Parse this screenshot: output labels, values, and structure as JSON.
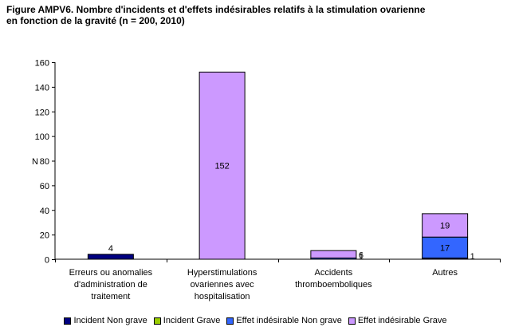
{
  "chart_data": {
    "type": "bar",
    "stacked": true,
    "title": "Figure AMPV6. Nombre d'incidents et d'effets indésirables relatifs à la stimulation ovarienne\nen fonction de la gravité (n = 200, 2010)",
    "xlabel": "",
    "ylabel": "N",
    "ylim": [
      0,
      160
    ],
    "yticks": [
      0,
      20,
      40,
      60,
      80,
      100,
      120,
      140,
      160
    ],
    "grid": false,
    "legend_position": "bottom",
    "categories": [
      [
        "Erreurs ou anomalies",
        "d'administration de",
        "traitement"
      ],
      [
        "Hyperstimulations",
        "ovariennes avec",
        "hospitalisation"
      ],
      [
        "Accidents",
        "thromboemboliques"
      ],
      [
        "Autres"
      ]
    ],
    "series": [
      {
        "name": "Incident Non grave",
        "color": "#000080",
        "values": [
          4,
          0,
          0,
          1
        ],
        "labels": [
          "4",
          "",
          "",
          "1"
        ]
      },
      {
        "name": "Incident Grave",
        "color": "#99CC00",
        "values": [
          0,
          0,
          0,
          0
        ],
        "labels": [
          "",
          "",
          "",
          ""
        ]
      },
      {
        "name": "Effet indésirable Non grave",
        "color": "#3366FF",
        "values": [
          0,
          0,
          1,
          17
        ],
        "labels": [
          "",
          "",
          "1",
          "17"
        ]
      },
      {
        "name": "Effet indésirable Grave",
        "color": "#CC99FF",
        "values": [
          0,
          152,
          6,
          19
        ],
        "labels": [
          "",
          "152",
          "6",
          "19"
        ]
      }
    ]
  }
}
